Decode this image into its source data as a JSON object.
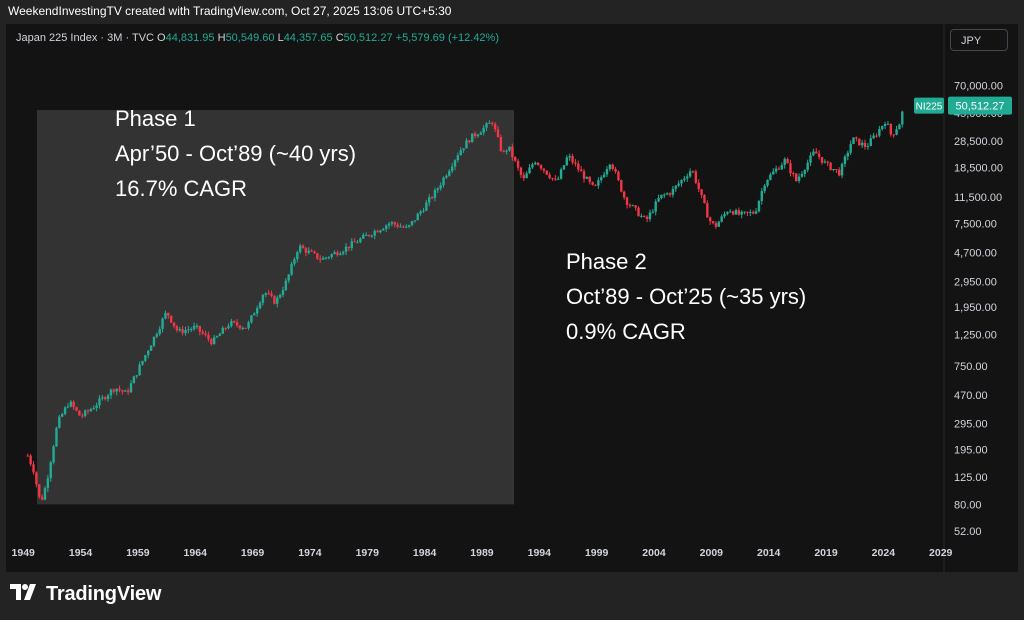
{
  "header": {
    "caption": "WeekendInvestingTV created with TradingView.com, Oct 27, 2025 13:06 UTC+5:30"
  },
  "legend": {
    "symbol": "Japan 225 Index · 3M · TVC",
    "open_label": "O",
    "open": "44,831.95",
    "high_label": "H",
    "high": "50,549.60",
    "low_label": "L",
    "low": "44,357.65",
    "close_label": "C",
    "close": "50,512.27",
    "change": "+5,579.69 (+12.42%)"
  },
  "currency_button": "JPY",
  "price_tag": {
    "symbol": "NI225",
    "value": "50,512.27"
  },
  "footer": {
    "brand": "TradingView"
  },
  "colors": {
    "up": "#22ab94",
    "down": "#f23645",
    "background": "#131313",
    "outer": "#232323",
    "highlight": "#3a3a3a"
  },
  "annotations": [
    {
      "lines": [
        "Phase 1",
        "Apr’50 - Oct’89 (~40 yrs)",
        "16.7% CAGR"
      ]
    },
    {
      "lines": [
        "Phase 2",
        "Oct’89 - Oct’25 (~35 yrs)",
        "0.9% CAGR"
      ]
    }
  ],
  "chart_data": {
    "type": "candlestick",
    "title": "Japan 225 Index · 3M · TVC",
    "y_scale": "log",
    "y_ticks": [
      {
        "value": 52,
        "label": "52.00"
      },
      {
        "value": 80,
        "label": "80.00"
      },
      {
        "value": 125,
        "label": "125.00"
      },
      {
        "value": 195,
        "label": "195.00"
      },
      {
        "value": 295,
        "label": "295.00"
      },
      {
        "value": 470,
        "label": "470.00"
      },
      {
        "value": 750,
        "label": "750.00"
      },
      {
        "value": 1250,
        "label": "1,250.00"
      },
      {
        "value": 1950,
        "label": "1,950.00"
      },
      {
        "value": 2950,
        "label": "2,950.00"
      },
      {
        "value": 4700,
        "label": "4,700.00"
      },
      {
        "value": 7500,
        "label": "7,500.00"
      },
      {
        "value": 11500,
        "label": "11,500.00"
      },
      {
        "value": 18500,
        "label": "18,500.00"
      },
      {
        "value": 28500,
        "label": "28,500.00"
      },
      {
        "value": 45000,
        "label": "45,000.00"
      },
      {
        "value": 70000,
        "label": "70,000.00"
      }
    ],
    "x_ticks": [
      "1949",
      "1954",
      "1959",
      "1964",
      "1969",
      "1974",
      "1979",
      "1984",
      "1989",
      "1994",
      "1999",
      "2004",
      "2009",
      "2014",
      "2019",
      "2024",
      "2029"
    ],
    "x_range": [
      1947.5,
      2029.2
    ],
    "key_points": [
      [
        1949.4,
        176
      ],
      [
        1949.9,
        140
      ],
      [
        1950.4,
        89
      ],
      [
        1950.6,
        86
      ],
      [
        1951.0,
        110
      ],
      [
        1952.0,
        300
      ],
      [
        1953.0,
        420
      ],
      [
        1954.0,
        330
      ],
      [
        1955.0,
        380
      ],
      [
        1957.0,
        530
      ],
      [
        1958.0,
        480
      ],
      [
        1959.0,
        700
      ],
      [
        1961.5,
        1800
      ],
      [
        1962.5,
        1300
      ],
      [
        1964.0,
        1400
      ],
      [
        1965.5,
        1100
      ],
      [
        1967.0,
        1500
      ],
      [
        1968.5,
        1400
      ],
      [
        1970.0,
        2500
      ],
      [
        1971.0,
        2100
      ],
      [
        1972.0,
        3000
      ],
      [
        1973.0,
        5200
      ],
      [
        1975.0,
        4200
      ],
      [
        1977.0,
        5000
      ],
      [
        1979.0,
        6200
      ],
      [
        1981.0,
        7600
      ],
      [
        1982.5,
        6900
      ],
      [
        1985.0,
        12700
      ],
      [
        1987.0,
        24000
      ],
      [
        1988.0,
        30000
      ],
      [
        1989.9,
        38915
      ],
      [
        1990.8,
        23000
      ],
      [
        1991.3,
        26000
      ],
      [
        1992.6,
        15000
      ],
      [
        1993.6,
        21000
      ],
      [
        1995.5,
        14500
      ],
      [
        1996.5,
        22500
      ],
      [
        1998.8,
        13000
      ],
      [
        2000.2,
        20800
      ],
      [
        2001.5,
        11000
      ],
      [
        2003.3,
        7800
      ],
      [
        2004.5,
        11500
      ],
      [
        2005.5,
        12500
      ],
      [
        2007.3,
        18200
      ],
      [
        2008.8,
        8000
      ],
      [
        2009.3,
        7100
      ],
      [
        2010.5,
        9500
      ],
      [
        2011.5,
        8600
      ],
      [
        2012.8,
        9000
      ],
      [
        2013.7,
        15000
      ],
      [
        2015.4,
        20800
      ],
      [
        2016.4,
        15000
      ],
      [
        2018.0,
        24000
      ],
      [
        2019.0,
        19500
      ],
      [
        2020.2,
        17000
      ],
      [
        2021.3,
        29500
      ],
      [
        2022.5,
        26000
      ],
      [
        2023.5,
        33000
      ],
      [
        2024.2,
        40000
      ],
      [
        2024.7,
        31000
      ],
      [
        2025.4,
        38000
      ],
      [
        2025.82,
        50512
      ]
    ]
  }
}
